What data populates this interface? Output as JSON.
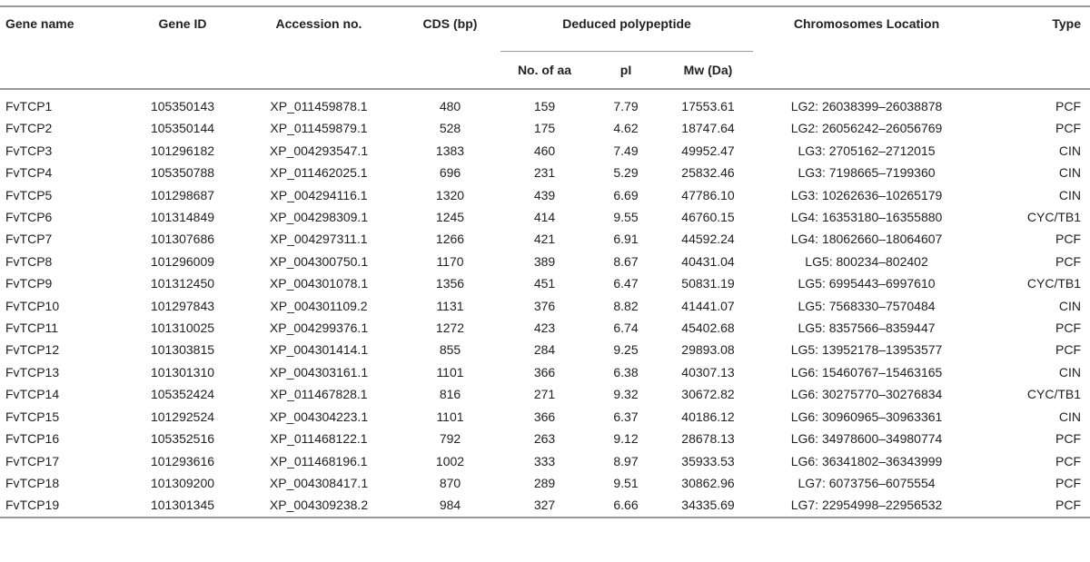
{
  "headers": {
    "gene_name": "Gene name",
    "gene_id": "Gene ID",
    "accession": "Accession no.",
    "cds": "CDS (bp)",
    "deduced": "Deduced polypeptide",
    "no_aa": "No. of aa",
    "pi": "pI",
    "mw": "Mw (Da)",
    "location": "Chromosomes Location",
    "type": "Type"
  },
  "rows": [
    [
      "FvTCP1",
      "105350143",
      "XP_011459878.1",
      "480",
      "159",
      "7.79",
      "17553.61",
      "LG2: 26038399–26038878",
      "PCF"
    ],
    [
      "FvTCP2",
      "105350144",
      "XP_011459879.1",
      "528",
      "175",
      "4.62",
      "18747.64",
      "LG2: 26056242–26056769",
      "PCF"
    ],
    [
      "FvTCP3",
      "101296182",
      "XP_004293547.1",
      "1383",
      "460",
      "7.49",
      "49952.47",
      "LG3: 2705162–2712015",
      "CIN"
    ],
    [
      "FvTCP4",
      "105350788",
      "XP_011462025.1",
      "696",
      "231",
      "5.29",
      "25832.46",
      "LG3: 7198665–7199360",
      "CIN"
    ],
    [
      "FvTCP5",
      "101298687",
      "XP_004294116.1",
      "1320",
      "439",
      "6.69",
      "47786.10",
      "LG3: 10262636–10265179",
      "CIN"
    ],
    [
      "FvTCP6",
      "101314849",
      "XP_004298309.1",
      "1245",
      "414",
      "9.55",
      "46760.15",
      "LG4: 16353180–16355880",
      "CYC/TB1"
    ],
    [
      "FvTCP7",
      "101307686",
      "XP_004297311.1",
      "1266",
      "421",
      "6.91",
      "44592.24",
      "LG4: 18062660–18064607",
      "PCF"
    ],
    [
      "FvTCP8",
      "101296009",
      "XP_004300750.1",
      "1170",
      "389",
      "8.67",
      "40431.04",
      "LG5: 800234–802402",
      "PCF"
    ],
    [
      "FvTCP9",
      "101312450",
      "XP_004301078.1",
      "1356",
      "451",
      "6.47",
      "50831.19",
      "LG5: 6995443–6997610",
      "CYC/TB1"
    ],
    [
      "FvTCP10",
      "101297843",
      "XP_004301109.2",
      "1131",
      "376",
      "8.82",
      "41441.07",
      "LG5: 7568330–7570484",
      "CIN"
    ],
    [
      "FvTCP11",
      "101310025",
      "XP_004299376.1",
      "1272",
      "423",
      "6.74",
      "45402.68",
      "LG5: 8357566–8359447",
      "PCF"
    ],
    [
      "FvTCP12",
      "101303815",
      "XP_004301414.1",
      "855",
      "284",
      "9.25",
      "29893.08",
      "LG5: 13952178–13953577",
      "PCF"
    ],
    [
      "FvTCP13",
      "101301310",
      "XP_004303161.1",
      "1101",
      "366",
      "6.38",
      "40307.13",
      "LG6: 15460767–15463165",
      "CIN"
    ],
    [
      "FvTCP14",
      "105352424",
      "XP_011467828.1",
      "816",
      "271",
      "9.32",
      "30672.82",
      "LG6: 30275770–30276834",
      "CYC/TB1"
    ],
    [
      "FvTCP15",
      "101292524",
      "XP_004304223.1",
      "1101",
      "366",
      "6.37",
      "40186.12",
      "LG6: 30960965–30963361",
      "CIN"
    ],
    [
      "FvTCP16",
      "105352516",
      "XP_011468122.1",
      "792",
      "263",
      "9.12",
      "28678.13",
      "LG6: 34978600–34980774",
      "PCF"
    ],
    [
      "FvTCP17",
      "101293616",
      "XP_011468196.1",
      "1002",
      "333",
      "8.97",
      "35933.53",
      "LG6: 36341802–36343999",
      "PCF"
    ],
    [
      "FvTCP18",
      "101309200",
      "XP_004308417.1",
      "870",
      "289",
      "9.51",
      "30862.96",
      "LG7: 6073756–6075554",
      "PCF"
    ],
    [
      "FvTCP19",
      "101301345",
      "XP_004309238.2",
      "984",
      "327",
      "6.66",
      "34335.69",
      "LG7: 22954998–22956532",
      "PCF"
    ]
  ]
}
